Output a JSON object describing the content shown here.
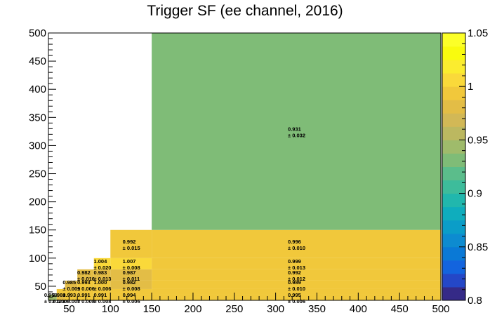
{
  "chart_data": {
    "type": "heatmap",
    "title": "Trigger SF (ee channel, 2016)",
    "xlabel": "",
    "ylabel": "",
    "xlim": [
      25,
      500
    ],
    "ylim": [
      25,
      500
    ],
    "x_ticks": [
      "50",
      "100",
      "150",
      "200",
      "250",
      "300",
      "350",
      "400",
      "450",
      "500"
    ],
    "y_ticks": [
      "50",
      "100",
      "150",
      "200",
      "250",
      "300",
      "350",
      "400",
      "450",
      "500"
    ],
    "zlim": [
      0.8,
      1.05
    ],
    "z_ticks": [
      "0.8",
      "0.85",
      "0.9",
      "0.95",
      "1",
      "1.05"
    ],
    "x_edges": [
      25,
      35,
      45,
      60,
      80,
      100,
      150,
      500
    ],
    "y_edges": [
      25,
      35,
      45,
      60,
      80,
      100,
      150,
      500
    ],
    "cells": [
      {
        "x0": 25,
        "x1": 35,
        "y0": 25,
        "y1": 35,
        "value": 0.95,
        "label": "0.950",
        "error": "± 0.012"
      },
      {
        "x0": 35,
        "x1": 45,
        "y0": 25,
        "y1": 35,
        "value": 0.981,
        "label": "0.981",
        "error": "± 0.008"
      },
      {
        "x0": 45,
        "x1": 60,
        "y0": 25,
        "y1": 35,
        "value": 0.993,
        "label": "0.993",
        "error": "± 0.007"
      },
      {
        "x0": 60,
        "x1": 80,
        "y0": 25,
        "y1": 35,
        "value": 0.991,
        "label": "0.991",
        "error": "± 0.008"
      },
      {
        "x0": 80,
        "x1": 100,
        "y0": 25,
        "y1": 35,
        "value": 0.991,
        "label": "0.991",
        "error": "± 0.008"
      },
      {
        "x0": 100,
        "x1": 150,
        "y0": 25,
        "y1": 35,
        "value": 0.994,
        "label": "0.994",
        "error": "± 0.006"
      },
      {
        "x0": 150,
        "x1": 500,
        "y0": 25,
        "y1": 35,
        "value": 0.995,
        "label": "0.995",
        "error": "± 0.006"
      },
      {
        "x0": 35,
        "x1": 45,
        "y0": 35,
        "y1": 45,
        "value": 0.998,
        "label": "",
        "error": ""
      },
      {
        "x0": 45,
        "x1": 60,
        "y0": 35,
        "y1": 45,
        "value": 0.99,
        "label": "",
        "error": ""
      },
      {
        "x0": 60,
        "x1": 80,
        "y0": 35,
        "y1": 45,
        "value": 0.99,
        "label": "",
        "error": ""
      },
      {
        "x0": 80,
        "x1": 100,
        "y0": 35,
        "y1": 45,
        "value": 0.993,
        "label": "",
        "error": ""
      },
      {
        "x0": 100,
        "x1": 150,
        "y0": 35,
        "y1": 45,
        "value": 0.994,
        "label": "",
        "error": ""
      },
      {
        "x0": 150,
        "x1": 500,
        "y0": 35,
        "y1": 45,
        "value": 0.996,
        "label": "",
        "error": ""
      },
      {
        "x0": 45,
        "x1": 60,
        "y0": 45,
        "y1": 60,
        "value": 0.985,
        "label": "0.985",
        "error": "± 0.009"
      },
      {
        "x0": 60,
        "x1": 80,
        "y0": 45,
        "y1": 60,
        "value": 0.993,
        "label": "0.993",
        "error": "± 0.006"
      },
      {
        "x0": 80,
        "x1": 100,
        "y0": 45,
        "y1": 60,
        "value": 1.0,
        "label": "1.000",
        "error": "± 0.006"
      },
      {
        "x0": 100,
        "x1": 150,
        "y0": 45,
        "y1": 60,
        "value": 0.982,
        "label": "0.982",
        "error": "± 0.008"
      },
      {
        "x0": 150,
        "x1": 500,
        "y0": 45,
        "y1": 60,
        "value": 0.989,
        "label": "0.989",
        "error": "± 0.010"
      },
      {
        "x0": 60,
        "x1": 80,
        "y0": 60,
        "y1": 80,
        "value": 0.982,
        "label": "0.982",
        "error": "± 0.016"
      },
      {
        "x0": 80,
        "x1": 100,
        "y0": 60,
        "y1": 80,
        "value": 0.983,
        "label": "0.983",
        "error": "± 0.013"
      },
      {
        "x0": 100,
        "x1": 150,
        "y0": 60,
        "y1": 80,
        "value": 0.987,
        "label": "0.987",
        "error": "± 0.011"
      },
      {
        "x0": 150,
        "x1": 500,
        "y0": 60,
        "y1": 80,
        "value": 0.992,
        "label": "0.992",
        "error": "± 0.012"
      },
      {
        "x0": 80,
        "x1": 100,
        "y0": 80,
        "y1": 100,
        "value": 1.004,
        "label": "1.004",
        "error": "± 0.020"
      },
      {
        "x0": 100,
        "x1": 150,
        "y0": 80,
        "y1": 100,
        "value": 1.007,
        "label": "1.007",
        "error": "± 0.008"
      },
      {
        "x0": 150,
        "x1": 500,
        "y0": 80,
        "y1": 100,
        "value": 0.999,
        "label": "0.999",
        "error": "± 0.013"
      },
      {
        "x0": 100,
        "x1": 150,
        "y0": 100,
        "y1": 150,
        "value": 0.992,
        "label": "0.992",
        "error": "± 0.015"
      },
      {
        "x0": 150,
        "x1": 500,
        "y0": 100,
        "y1": 150,
        "value": 0.996,
        "label": "0.996",
        "error": "± 0.010"
      },
      {
        "x0": 150,
        "x1": 500,
        "y0": 150,
        "y1": 500,
        "value": 0.931,
        "label": "0.931",
        "error": "± 0.032"
      }
    ],
    "palette": [
      "#352a87",
      "#2447c7",
      "#1364de",
      "#0a79d6",
      "#0d8bd0",
      "#0b9dc8",
      "#0fadbd",
      "#21b7ad",
      "#3dbc9b",
      "#5bbd8b",
      "#7fbc77",
      "#9fbb6b",
      "#bcb860",
      "#d2b856",
      "#e3bd46",
      "#f1c83b",
      "#fad93a",
      "#fbec2f",
      "#f9fb0e",
      "#fcff28"
    ],
    "grid": false,
    "legend": "colorbar-right"
  }
}
